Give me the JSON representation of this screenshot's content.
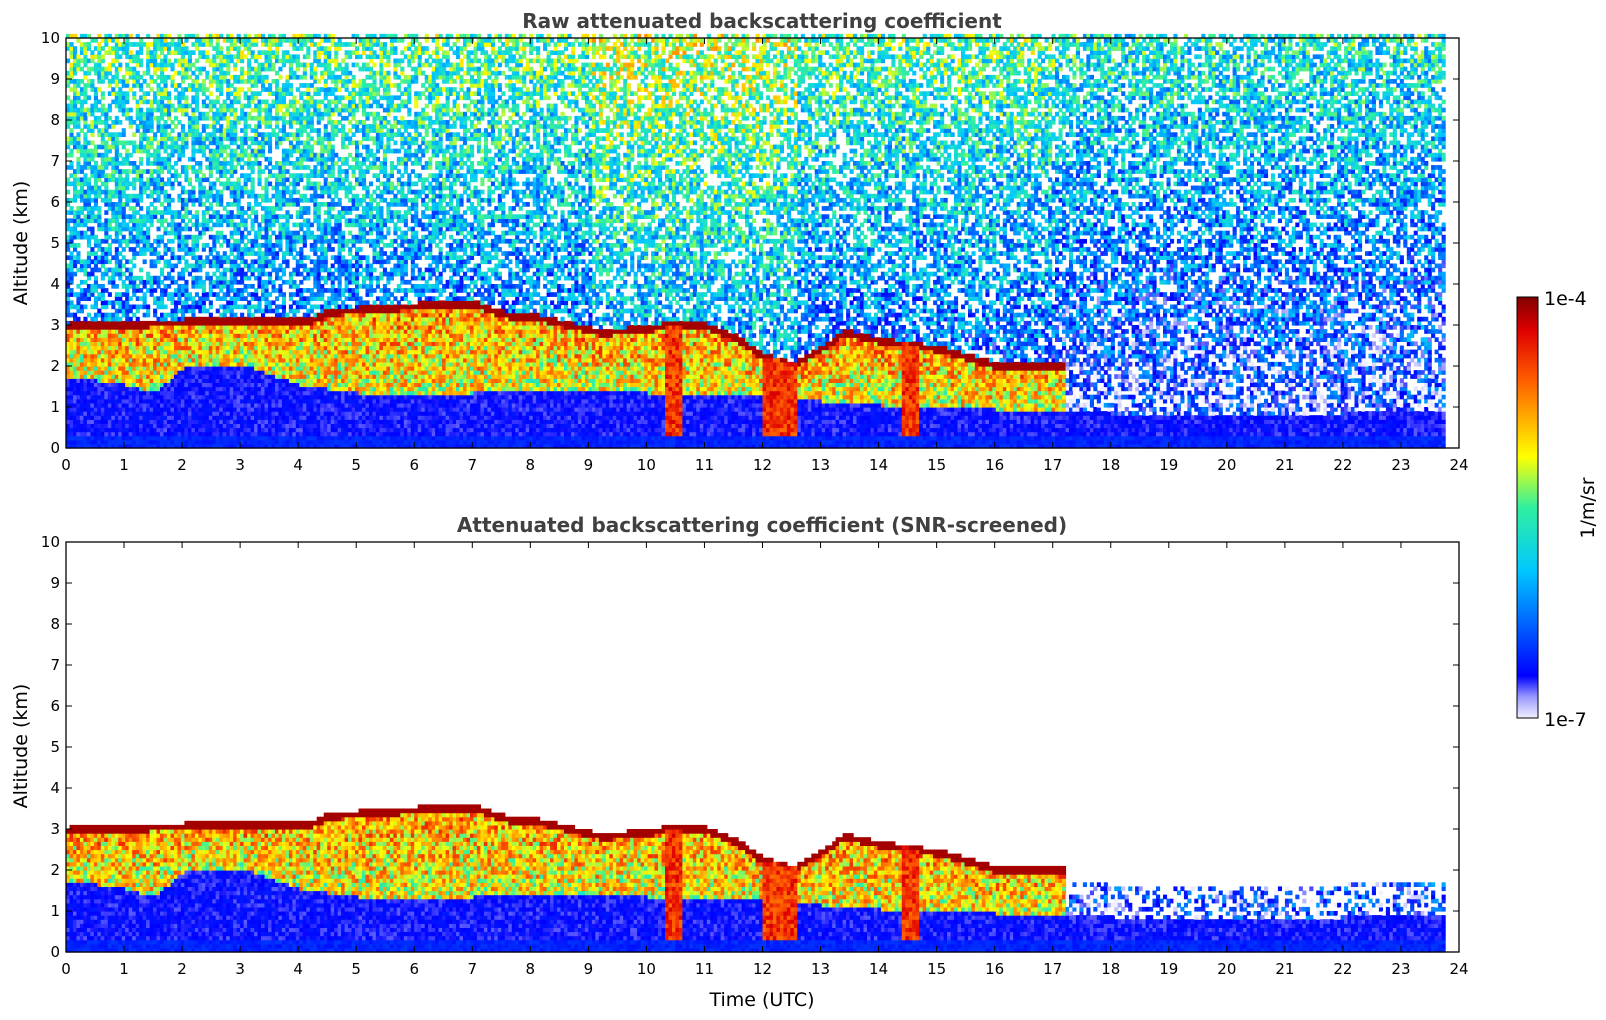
{
  "chart_data": [
    {
      "type": "heatmap",
      "title": "Raw attenuated backscattering coefficient",
      "xlabel": "",
      "ylabel": "Altitude (km)",
      "xlim": [
        0,
        24
      ],
      "ylim": [
        0,
        10
      ],
      "xticks": [
        "0",
        "1",
        "2",
        "3",
        "4",
        "5",
        "6",
        "7",
        "8",
        "9",
        "10",
        "11",
        "12",
        "13",
        "14",
        "15",
        "16",
        "17",
        "18",
        "19",
        "20",
        "21",
        "22",
        "23",
        "24"
      ],
      "yticks": [
        "0",
        "1",
        "2",
        "3",
        "4",
        "5",
        "6",
        "7",
        "8",
        "9",
        "10"
      ],
      "data_end_hour": 23.7,
      "screened": false,
      "layers": {
        "cloud_top_km": [
          [
            0,
            2.95
          ],
          [
            1,
            3.0
          ],
          [
            2,
            3.05
          ],
          [
            3,
            3.08
          ],
          [
            3.3,
            3.08
          ],
          [
            4.2,
            3.1
          ],
          [
            4.5,
            3.3
          ],
          [
            5.5,
            3.4
          ],
          [
            6,
            3.45
          ],
          [
            7,
            3.5
          ],
          [
            7.6,
            3.2
          ],
          [
            8,
            3.2
          ],
          [
            8.6,
            3.0
          ],
          [
            9.2,
            2.8
          ],
          [
            10,
            2.9
          ],
          [
            10.4,
            3.0
          ],
          [
            11,
            2.95
          ],
          [
            11.5,
            2.7
          ],
          [
            12,
            2.2
          ],
          [
            12.5,
            2.0
          ],
          [
            13,
            2.4
          ],
          [
            13.4,
            2.8
          ],
          [
            14,
            2.6
          ],
          [
            15,
            2.4
          ],
          [
            16,
            2.0
          ],
          [
            17,
            2.0
          ],
          [
            17.2,
            1.98
          ]
        ],
        "boundary_layer_top_km": [
          [
            0,
            1.7
          ],
          [
            1,
            1.5
          ],
          [
            1.5,
            1.3
          ],
          [
            2,
            1.9
          ],
          [
            3,
            2.0
          ],
          [
            4,
            1.5
          ],
          [
            5,
            1.3
          ],
          [
            6,
            1.2
          ],
          [
            8,
            1.4
          ],
          [
            10,
            1.3
          ],
          [
            12,
            1.2
          ],
          [
            14,
            1.0
          ],
          [
            16,
            0.9
          ],
          [
            18,
            0.8
          ],
          [
            20,
            0.7
          ],
          [
            22,
            0.8
          ],
          [
            23.7,
            0.9
          ]
        ],
        "precipitation_hours": [
          [
            10.3,
            10.6
          ],
          [
            12.0,
            12.6
          ],
          [
            14.4,
            14.7
          ]
        ]
      }
    },
    {
      "type": "heatmap",
      "title": "Attenuated backscattering coefficient (SNR-screened)",
      "xlabel": "Time (UTC)",
      "ylabel": "Altitude (km)",
      "xlim": [
        0,
        24
      ],
      "ylim": [
        0,
        10
      ],
      "xticks": [
        "0",
        "1",
        "2",
        "3",
        "4",
        "5",
        "6",
        "7",
        "8",
        "9",
        "10",
        "11",
        "12",
        "13",
        "14",
        "15",
        "16",
        "17",
        "18",
        "19",
        "20",
        "21",
        "22",
        "23",
        "24"
      ],
      "yticks": [
        "0",
        "1",
        "2",
        "3",
        "4",
        "5",
        "6",
        "7",
        "8",
        "9",
        "10"
      ],
      "data_end_hour": 23.7,
      "screened": true
    }
  ],
  "colorbar": {
    "label": "1/m/sr",
    "max_label": "1e-4",
    "min_label": "1e-7",
    "colormap": "jet",
    "scale": "log",
    "range": [
      1e-07,
      0.0001
    ]
  }
}
